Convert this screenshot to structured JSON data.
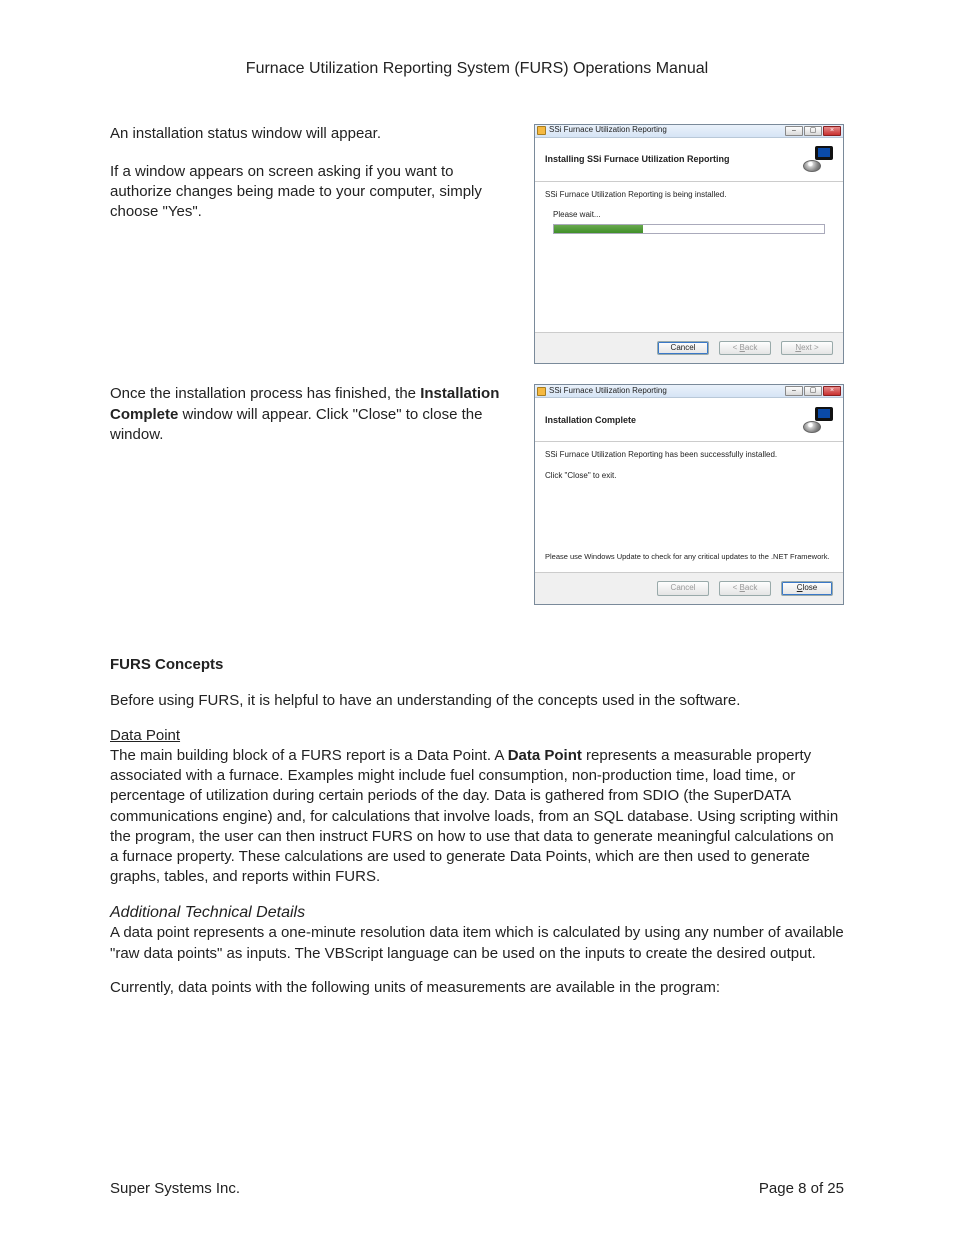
{
  "doc": {
    "title": "Furnace Utilization Reporting System (FURS) Operations Manual",
    "footer_left": "Super Systems Inc.",
    "footer_right": "Page 8 of 25"
  },
  "section1": {
    "para1": "An installation status window will appear.",
    "para2": "If a window appears on screen asking if you want to authorize changes being made to your computer, simply choose \"Yes\"."
  },
  "section2": {
    "para_pre": "Once the installation process has finished, the ",
    "para_bold": "Installation Complete",
    "para_post": " window will appear. Click \"Close\" to close the window."
  },
  "win1": {
    "title": "SSi Furnace Utilization Reporting",
    "heading": "Installing SSi Furnace Utilization Reporting",
    "status": "SSi Furnace Utilization Reporting is being installed.",
    "please_wait": "Please wait...",
    "progress_pct": 33,
    "btn_cancel": "Cancel",
    "btn_back_pre": "< ",
    "btn_back_u": "B",
    "btn_back_post": "ack",
    "btn_next_u": "N",
    "btn_next_post": "ext >"
  },
  "win2": {
    "title": "SSi Furnace Utilization Reporting",
    "heading": "Installation Complete",
    "line1": "SSi Furnace Utilization Reporting has been successfully installed.",
    "line2": "Click \"Close\" to exit.",
    "footnote": "Please use Windows Update to check for any critical updates to the .NET Framework.",
    "btn_cancel": "Cancel",
    "btn_back_pre": "< ",
    "btn_back_u": "B",
    "btn_back_post": "ack",
    "btn_close_u": "C",
    "btn_close_post": "lose"
  },
  "concepts": {
    "heading": "FURS Concepts",
    "intro": "Before using FURS, it is helpful to have an understanding of the concepts used in the software.",
    "dp_heading": "Data Point",
    "dp_para_pre": "The main building block of a FURS report is a Data Point. A ",
    "dp_para_bold": "Data Point",
    "dp_para_post": " represents a measurable property associated with a furnace. Examples might include fuel consumption, non-production time, load time, or percentage of utilization during certain periods of the day. Data is gathered from SDIO (the SuperDATA communications engine) and, for calculations that involve loads, from an SQL database. Using scripting within the program, the user can then instruct FURS on how to use that data to generate meaningful calculations on a furnace property. These calculations are used to generate Data Points, which are then used to generate graphs, tables, and reports within FURS.",
    "tech_heading": "Additional Technical Details",
    "tech_para": "A data point represents a one-minute resolution data item which is calculated by using any number of available \"raw data points\" as inputs. The VBScript language can be used on the inputs to create the desired output.",
    "tech_para2": "Currently, data points with the following units of measurements are available in the program:"
  }
}
